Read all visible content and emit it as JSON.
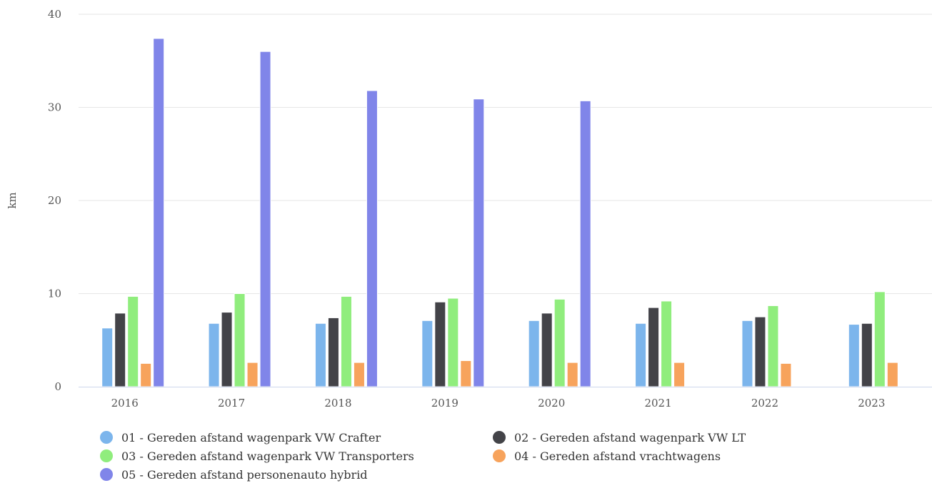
{
  "chart_data": {
    "type": "bar",
    "title": "",
    "xlabel": "",
    "ylabel": "km",
    "ylim": [
      0,
      40
    ],
    "yticks": [
      0,
      10,
      20,
      30,
      40
    ],
    "grid": true,
    "legend_position": "bottom",
    "categories": [
      "2016",
      "2017",
      "2018",
      "2019",
      "2020",
      "2021",
      "2022",
      "2023"
    ],
    "series": [
      {
        "name": "01 - Gereden afstand wagenpark VW Crafter",
        "color": "#7cb5ec",
        "values": [
          6.3,
          6.8,
          6.8,
          7.1,
          7.1,
          6.8,
          7.1,
          6.7
        ]
      },
      {
        "name": "02 - Gereden afstand wagenpark VW LT",
        "color": "#434348",
        "values": [
          7.9,
          8.0,
          7.4,
          9.1,
          7.9,
          8.5,
          7.5,
          6.8
        ]
      },
      {
        "name": "03 - Gereden afstand wagenpark VW Transporters",
        "color": "#90ed7d",
        "values": [
          9.7,
          10.0,
          9.7,
          9.5,
          9.4,
          9.2,
          8.7,
          10.2
        ]
      },
      {
        "name": "04 - Gereden afstand vrachtwagens",
        "color": "#f7a35c",
        "values": [
          2.5,
          2.6,
          2.6,
          2.8,
          2.6,
          2.6,
          2.5,
          2.6
        ]
      },
      {
        "name": "05 - Gereden afstand personenauto hybrid",
        "color": "#8085e9",
        "values": [
          37.4,
          36.0,
          31.8,
          30.9,
          30.7,
          null,
          null,
          null
        ]
      }
    ]
  }
}
